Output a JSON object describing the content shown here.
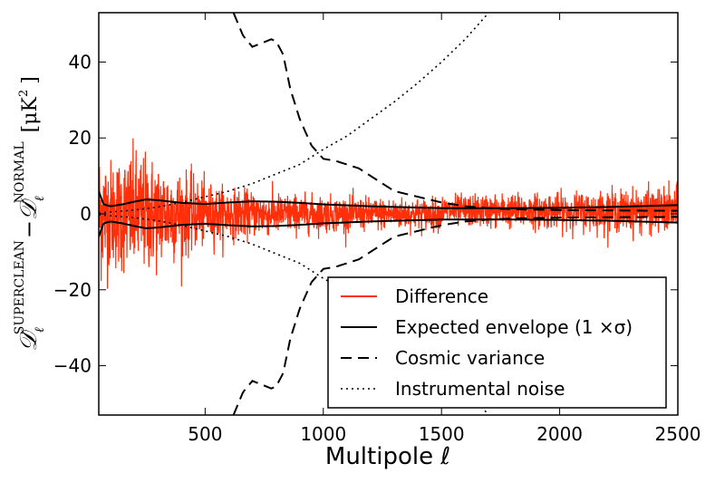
{
  "chart_data": {
    "type": "line",
    "xlabel": "Multipole ℓ",
    "ylabel": {
      "main": "𝒟",
      "sub": "ℓ",
      "sup": "SUPERCLEAN",
      "minus": "−",
      "main2": "𝒟",
      "sub2": "ℓ",
      "sup2": "NORMAL",
      "unit_open": "[μK",
      "unit_sup": "2",
      "unit_close": "]"
    },
    "xlim": [
      50,
      2500
    ],
    "ylim": [
      -53,
      53
    ],
    "x_ticks": [
      500,
      1000,
      1500,
      2000,
      2500
    ],
    "x_tick_labels": [
      "500",
      "1000",
      "1500",
      "2000",
      "2500"
    ],
    "y_ticks": [
      -40,
      -20,
      0,
      20,
      40
    ],
    "y_tick_labels": [
      "−40",
      "−20",
      "0",
      "20",
      "40"
    ],
    "legend_position": "lower-right",
    "series": [
      {
        "name": "Difference",
        "style": "solid",
        "color": "#ff2f0a",
        "amplitude_profile": {
          "x": [
            50,
            100,
            200,
            300,
            400,
            500,
            600,
            800,
            1000,
            1200,
            1500,
            2000,
            2500
          ],
          "sigma": [
            9,
            7,
            8,
            7,
            5.5,
            4,
            3.2,
            2.6,
            2.3,
            2.1,
            2.0,
            2.3,
            3.0
          ]
        }
      },
      {
        "name": "Expected envelope (1 ×σ)",
        "style": "solid",
        "color": "#000000",
        "x": [
          50,
          70,
          100,
          150,
          200,
          250,
          300,
          400,
          500,
          600,
          700,
          800,
          900,
          1000,
          1200,
          1500,
          1800,
          2000,
          2200,
          2500
        ],
        "upper": [
          6,
          2.5,
          2.0,
          2.5,
          3.2,
          3.8,
          3.6,
          2.9,
          2.6,
          3.0,
          3.3,
          3.2,
          2.9,
          2.5,
          2.0,
          1.5,
          1.5,
          1.6,
          1.8,
          2.3
        ],
        "lower": [
          -6,
          -2.5,
          -2.0,
          -2.5,
          -3.2,
          -3.8,
          -3.6,
          -2.9,
          -2.6,
          -3.0,
          -3.3,
          -3.2,
          -2.9,
          -2.5,
          -2.0,
          -1.5,
          -1.5,
          -1.6,
          -1.8,
          -2.3
        ]
      },
      {
        "name": "Cosmic variance",
        "style": "dashed",
        "color": "#000000",
        "x": [
          620,
          660,
          700,
          740,
          780,
          800,
          830,
          860,
          900,
          950,
          1000,
          1050,
          1100,
          1150,
          1200,
          1250,
          1300,
          1400,
          1500,
          1600,
          1700,
          1800,
          2000,
          2200,
          2500
        ],
        "values": [
          53,
          47,
          44,
          45,
          46,
          45.5,
          42,
          33,
          25,
          18,
          14.5,
          14,
          13,
          12,
          10,
          8,
          6,
          4.5,
          3,
          2,
          1.5,
          1.2,
          1.0,
          0.9,
          0.8
        ]
      },
      {
        "name": "Instrumental noise",
        "style": "dotted",
        "color": "#000000",
        "x": [
          50,
          100,
          200,
          300,
          400,
          500,
          600,
          700,
          800,
          900,
          1000,
          1100,
          1200,
          1300,
          1400,
          1500,
          1600,
          1700
        ],
        "values": [
          0.2,
          0.5,
          1,
          1.8,
          3,
          4.5,
          6,
          8,
          10.5,
          13,
          17,
          20.5,
          25,
          29.5,
          34.5,
          40,
          46,
          53
        ]
      }
    ]
  }
}
